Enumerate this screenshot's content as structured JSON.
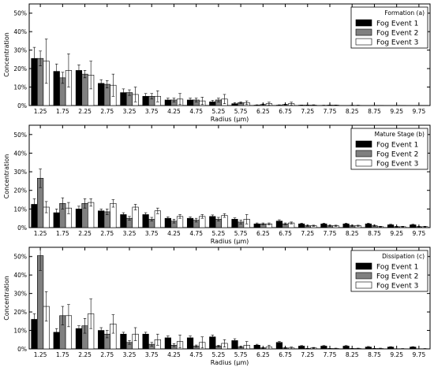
{
  "chart_data": [
    {
      "type": "bar",
      "legend_title": "Formation (a)",
      "legend_position": "top-right",
      "xlabel": "Radius (μm)",
      "ylabel": "Concentration",
      "ylim": [
        0,
        55
      ],
      "yticks": [
        "0%",
        "10%",
        "20%",
        "30%",
        "40%",
        "50%"
      ],
      "categories": [
        "1.25",
        "1.75",
        "2.25",
        "2.75",
        "3.25",
        "3.75",
        "4.25",
        "4.75",
        "5.25",
        "5.75",
        "6.25",
        "6.75",
        "7.25",
        "7.75",
        "8.25",
        "8.75",
        "9.25",
        "9.75"
      ],
      "series": [
        {
          "name": "Fog Event 1",
          "color": "#000000",
          "values": [
            25.5,
            18.5,
            19,
            12,
            7,
            5,
            3,
            3,
            2,
            1,
            0.2,
            0.2,
            0.2,
            0.1,
            0,
            0,
            0,
            0
          ],
          "errors": [
            6,
            4,
            3,
            2,
            2,
            1.5,
            1,
            1,
            0.8,
            0.6,
            0.2,
            0.2,
            0.1,
            0.1,
            0,
            0,
            0,
            0
          ]
        },
        {
          "name": "Fog Event 2",
          "color": "#808080",
          "values": [
            25.5,
            15,
            17,
            11.5,
            7,
            5,
            3,
            3,
            3,
            1.5,
            0.5,
            0.5,
            0.2,
            0.2,
            0.1,
            0.1,
            0.1,
            0.1
          ],
          "errors": [
            4,
            3,
            2,
            2,
            1.5,
            1.5,
            1,
            1,
            1,
            0.5,
            0.3,
            0.2,
            0.1,
            0.1,
            0.1,
            0,
            0,
            0
          ],
          "note": ""
        },
        {
          "name": "Fog Event 3",
          "color": "#ffffff",
          "values": [
            24,
            19,
            16.5,
            11,
            6,
            5,
            3.5,
            2.5,
            3.5,
            1.5,
            1,
            1,
            0.2,
            0.2,
            0.1,
            0.1,
            0.1,
            0.1
          ],
          "errors": [
            12,
            9,
            7.5,
            6,
            4,
            3,
            3,
            2,
            2.5,
            1,
            0.8,
            0.8,
            0.2,
            0.1,
            0.1,
            0,
            0,
            0
          ]
        }
      ]
    },
    {
      "type": "bar",
      "legend_title": "Mature Stage (b)",
      "legend_position": "top-right",
      "xlabel": "Radius (μm)",
      "ylabel": "Concentration",
      "ylim": [
        0,
        55
      ],
      "yticks": [
        "0%",
        "10%",
        "20%",
        "30%",
        "40%",
        "50%"
      ],
      "categories": [
        "1.25",
        "1.75",
        "2.25",
        "2.75",
        "3.25",
        "3.75",
        "4.25",
        "4.75",
        "5.25",
        "5.75",
        "6.25",
        "6.75",
        "7.25",
        "7.75",
        "8.25",
        "8.75",
        "9.25",
        "9.75"
      ],
      "series": [
        {
          "name": "Fog Event 1",
          "color": "#000000",
          "values": [
            12.5,
            8,
            10,
            9,
            7,
            7,
            5,
            5,
            6,
            4.5,
            2,
            3.5,
            2,
            2,
            2,
            2,
            1.5,
            1.5
          ],
          "errors": [
            3,
            2,
            1.5,
            1,
            1,
            1,
            0.8,
            0.8,
            0.8,
            0.7,
            0.5,
            0.7,
            0.4,
            0.4,
            0.4,
            0.4,
            0.3,
            0.3
          ]
        },
        {
          "name": "Fog Event 2",
          "color": "#808080",
          "values": [
            26.5,
            13,
            13,
            8.5,
            5,
            4.5,
            3.5,
            4,
            4.5,
            3,
            2,
            2,
            1,
            1,
            1,
            1,
            0.5,
            0.5
          ],
          "errors": [
            5,
            3,
            2.5,
            1.5,
            1,
            1,
            1,
            1,
            1,
            1,
            0.5,
            0.5,
            0.3,
            0.3,
            0.3,
            0.3,
            0.2,
            0.2
          ]
        },
        {
          "name": "Fog Event 3",
          "color": "#ffffff",
          "values": [
            11,
            10.5,
            13.5,
            13,
            11,
            9,
            6,
            6,
            6.5,
            4.5,
            2,
            2.5,
            1,
            1,
            1,
            0.5,
            0.5,
            0.5
          ],
          "errors": [
            3,
            3,
            2,
            2,
            1.5,
            1.5,
            1,
            1,
            1,
            2.5,
            0.5,
            0.5,
            0.3,
            0.3,
            0.3,
            0.2,
            0.2,
            0.2
          ]
        }
      ]
    },
    {
      "type": "bar",
      "legend_title": "Dissipation (c)",
      "legend_position": "top-right",
      "xlabel": "Radius (μm)",
      "ylabel": "Concentration",
      "ylim": [
        0,
        55
      ],
      "yticks": [
        "0%",
        "10%",
        "20%",
        "30%",
        "40%",
        "50%"
      ],
      "categories": [
        "1.25",
        "1.75",
        "2.25",
        "2.75",
        "3.25",
        "3.75",
        "4.25",
        "4.75",
        "5.25",
        "5.75",
        "6.25",
        "6.75",
        "7.25",
        "7.75",
        "8.25",
        "8.75",
        "9.25",
        "9.75"
      ],
      "series": [
        {
          "name": "Fog Event 1",
          "color": "#000000",
          "values": [
            16,
            9,
            11,
            10,
            8,
            8,
            6,
            6,
            6.5,
            4.5,
            2,
            3.5,
            1.5,
            1.5,
            1.5,
            1,
            1,
            1
          ],
          "errors": [
            3,
            2,
            1.5,
            1.5,
            1,
            1,
            1,
            1,
            1,
            1,
            0.5,
            0.5,
            0.3,
            0.3,
            0.3,
            0.3,
            0.2,
            0.2
          ]
        },
        {
          "name": "Fog Event 2",
          "color": "#808080",
          "values": [
            50.5,
            18,
            12.5,
            8,
            3.5,
            2.5,
            2,
            1.5,
            1.5,
            1,
            0.5,
            0.5,
            0.2,
            0.2,
            0.2,
            0.2,
            0.1,
            0.1
          ],
          "errors": [
            8,
            5,
            4,
            2,
            1,
            1,
            0.8,
            0.6,
            0.5,
            0.4,
            0.2,
            0.2,
            0.1,
            0.1,
            0.1,
            0.1,
            0,
            0
          ]
        },
        {
          "name": "Fog Event 3",
          "color": "#ffffff",
          "values": [
            23,
            18,
            19,
            13.5,
            8,
            5,
            4,
            3.5,
            3,
            2,
            1,
            0.5,
            0.5,
            0.2,
            0.2,
            0.2,
            0.1,
            0.1
          ],
          "errors": [
            8,
            6,
            8,
            5,
            3.5,
            3,
            3.5,
            3,
            2,
            2,
            1,
            0.5,
            0.3,
            0.2,
            0.2,
            0.2,
            0.1,
            0.1
          ]
        }
      ]
    }
  ]
}
